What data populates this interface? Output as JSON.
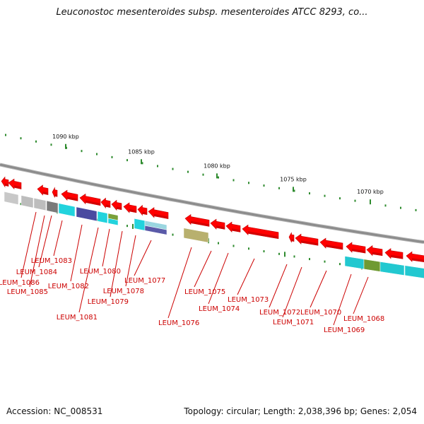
{
  "title": "Leuconostoc mesenteroides subsp. mesenteroides ATCC 8293, co...",
  "footer": {
    "accession": "Accession: NC_008531",
    "summary": "Topology: circular; Length: 2,038,396 bp; Genes: 2,054"
  },
  "colors": {
    "backbone": "#8c8c8c",
    "gene_arrow": "#ff0000",
    "tick": "#2e8b2e",
    "label": "#cc0000"
  },
  "kbp_ticks": [
    {
      "label": "1090 kbp"
    },
    {
      "label": "1085 kbp"
    },
    {
      "label": "1080 kbp"
    },
    {
      "label": "1075 kbp"
    },
    {
      "label": "1070 kbp"
    }
  ],
  "gene_labels": [
    {
      "name": "LEUM_1083"
    },
    {
      "name": "LEUM_1084"
    },
    {
      "name": "LEUM_1086"
    },
    {
      "name": "LEUM_1085"
    },
    {
      "name": "LEUM_1082"
    },
    {
      "name": "LEUM_1080"
    },
    {
      "name": "LEUM_1081"
    },
    {
      "name": "LEUM_1079"
    },
    {
      "name": "LEUM_1078"
    },
    {
      "name": "LEUM_1077"
    },
    {
      "name": "LEUM_1076"
    },
    {
      "name": "LEUM_1075"
    },
    {
      "name": "LEUM_1074"
    },
    {
      "name": "LEUM_1073"
    },
    {
      "name": "LEUM_1072"
    },
    {
      "name": "LEUM_1071"
    },
    {
      "name": "LEUM_1070"
    },
    {
      "name": "LEUM_1069"
    },
    {
      "name": "LEUM_1068"
    }
  ]
}
